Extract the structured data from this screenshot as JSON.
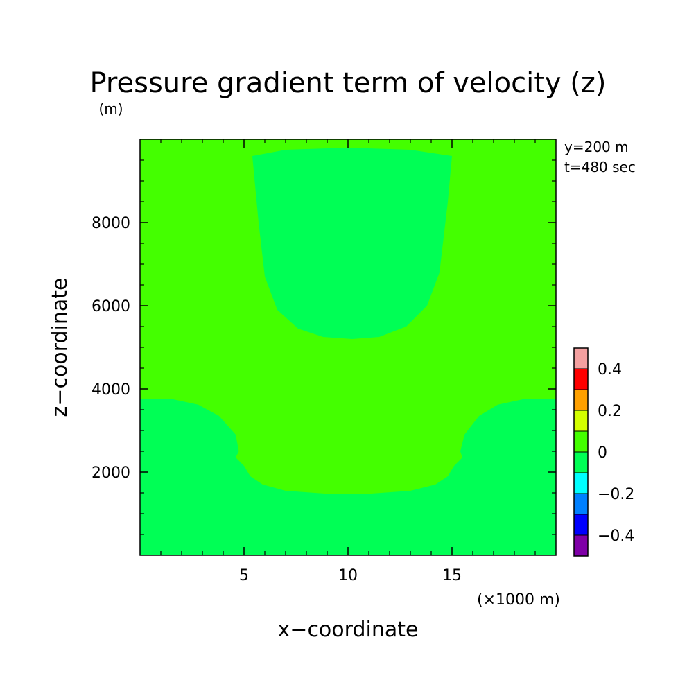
{
  "chart_data": {
    "type": "heatmap",
    "title": "Pressure gradient term of velocity (z)",
    "y_unit": "(m)",
    "xlabel": "x−coordinate",
    "ylabel": "z−coordinate",
    "x_unit": "(×1000 m)",
    "annotations": [
      "y=200 m",
      "t=480 sec"
    ],
    "xlim": [
      0,
      20
    ],
    "ylim": [
      0,
      10000
    ],
    "x_ticks": [
      {
        "value": 5,
        "label": "5"
      },
      {
        "value": 10,
        "label": "10"
      },
      {
        "value": 15,
        "label": "15"
      }
    ],
    "y_ticks": [
      {
        "value": 2000,
        "label": "2000"
      },
      {
        "value": 4000,
        "label": "4000"
      },
      {
        "value": 6000,
        "label": "6000"
      },
      {
        "value": 8000,
        "label": "8000"
      }
    ],
    "colorbar": {
      "levels": [
        {
          "from": -0.5,
          "to": -0.4,
          "color": "#7f00a7"
        },
        {
          "from": -0.4,
          "to": -0.3,
          "color": "#0000ff"
        },
        {
          "from": -0.3,
          "to": -0.2,
          "color": "#0080ff"
        },
        {
          "from": -0.2,
          "to": -0.1,
          "color": "#00ffff"
        },
        {
          "from": -0.1,
          "to": 0.0,
          "color": "#00ff55"
        },
        {
          "from": 0.0,
          "to": 0.1,
          "color": "#44ff00"
        },
        {
          "from": 0.1,
          "to": 0.2,
          "color": "#d4ff00"
        },
        {
          "from": 0.2,
          "to": 0.3,
          "color": "#ffa000"
        },
        {
          "from": 0.3,
          "to": 0.4,
          "color": "#ff0000"
        },
        {
          "from": 0.4,
          "to": 0.5,
          "color": "#f4a0a0"
        }
      ],
      "tick_labels": [
        {
          "value": -0.4,
          "label": "−0.4"
        },
        {
          "value": -0.2,
          "label": "−0.2"
        },
        {
          "value": 0.0,
          "label": "0"
        },
        {
          "value": 0.2,
          "label": "0.2"
        },
        {
          "value": 0.4,
          "label": "0.4"
        }
      ]
    },
    "background_color": "#44ff00",
    "regions": [
      {
        "name": "upper-negative-region",
        "range": "-0.1 to 0",
        "color": "#00ff55",
        "boundary": [
          [
            5.4,
            9600
          ],
          [
            7.0,
            9750
          ],
          [
            10.0,
            9800
          ],
          [
            13.0,
            9750
          ],
          [
            15.0,
            9600
          ],
          [
            14.8,
            8500
          ],
          [
            14.4,
            6800
          ],
          [
            13.8,
            6000
          ],
          [
            12.8,
            5500
          ],
          [
            11.5,
            5250
          ],
          [
            10.2,
            5200
          ],
          [
            8.8,
            5250
          ],
          [
            7.6,
            5450
          ],
          [
            6.6,
            5900
          ],
          [
            6.0,
            6700
          ],
          [
            5.7,
            8000
          ]
        ]
      },
      {
        "name": "lower-negative-region",
        "range": "-0.1 to 0",
        "color": "#00ff55",
        "boundary": [
          [
            0,
            3750
          ],
          [
            1.6,
            3750
          ],
          [
            2.8,
            3620
          ],
          [
            3.8,
            3350
          ],
          [
            4.6,
            2900
          ],
          [
            4.75,
            2500
          ],
          [
            4.6,
            2350
          ],
          [
            5.0,
            2150
          ],
          [
            5.3,
            1900
          ],
          [
            5.9,
            1700
          ],
          [
            7.0,
            1550
          ],
          [
            9.0,
            1480
          ],
          [
            10.0,
            1470
          ],
          [
            11.0,
            1480
          ],
          [
            13.0,
            1550
          ],
          [
            14.2,
            1700
          ],
          [
            14.8,
            1900
          ],
          [
            15.1,
            2150
          ],
          [
            15.5,
            2350
          ],
          [
            15.4,
            2500
          ],
          [
            15.6,
            2900
          ],
          [
            16.3,
            3350
          ],
          [
            17.2,
            3620
          ],
          [
            18.4,
            3750
          ],
          [
            20.0,
            3750
          ],
          [
            20.0,
            0
          ],
          [
            0,
            0
          ]
        ]
      }
    ]
  }
}
